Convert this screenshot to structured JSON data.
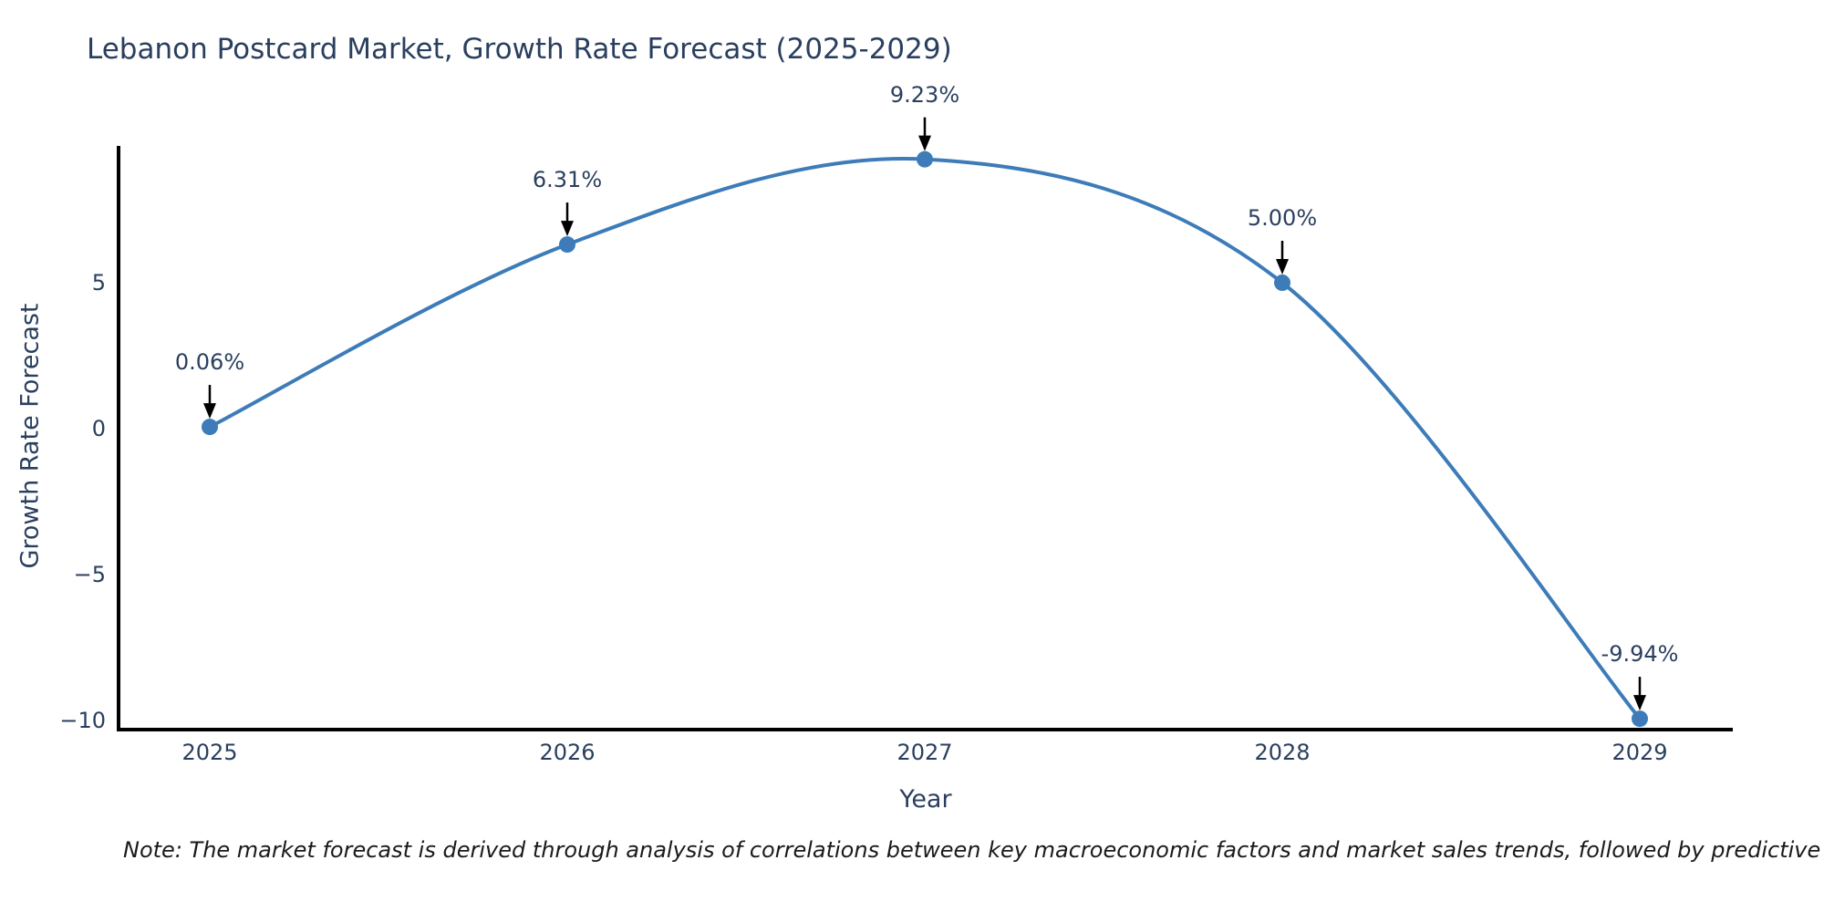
{
  "title": "Lebanon Postcard Market, Growth Rate Forecast (2025-2029)",
  "note": "Note: The market forecast is derived through analysis of correlations between key macroeconomic factors and market sales trends, followed by predictive modeling to project future sales",
  "chart_data": {
    "type": "line",
    "title": "Lebanon Postcard Market, Growth Rate Forecast (2025-2029)",
    "xlabel": "Year",
    "ylabel": "Growth Rate Forecast",
    "x": [
      2025,
      2026,
      2027,
      2028,
      2029
    ],
    "series": [
      {
        "name": "Growth Rate Forecast",
        "values": [
          0.06,
          6.31,
          9.23,
          5.0,
          -9.94
        ]
      }
    ],
    "point_labels": [
      "0.06%",
      "6.31%",
      "9.23%",
      "5.00%",
      "-9.94%"
    ],
    "x_tick_labels": [
      "2025",
      "2026",
      "2027",
      "2028",
      "2029"
    ],
    "y_tick_values": [
      5,
      0,
      -5,
      -10
    ],
    "y_tick_labels": [
      "5",
      "0",
      "−5",
      "−10"
    ],
    "ylim": [
      -10.3,
      9.7
    ],
    "line_shape": "spline",
    "grid": false,
    "legend": "none",
    "annotations_have_arrows": true,
    "colors": {
      "line": "#3d7cb8",
      "marker": "#3d7cb8",
      "axis": "#000000",
      "text": "#2a3f5f",
      "arrow": "#000000",
      "note_text": "#1a1a1a"
    }
  }
}
